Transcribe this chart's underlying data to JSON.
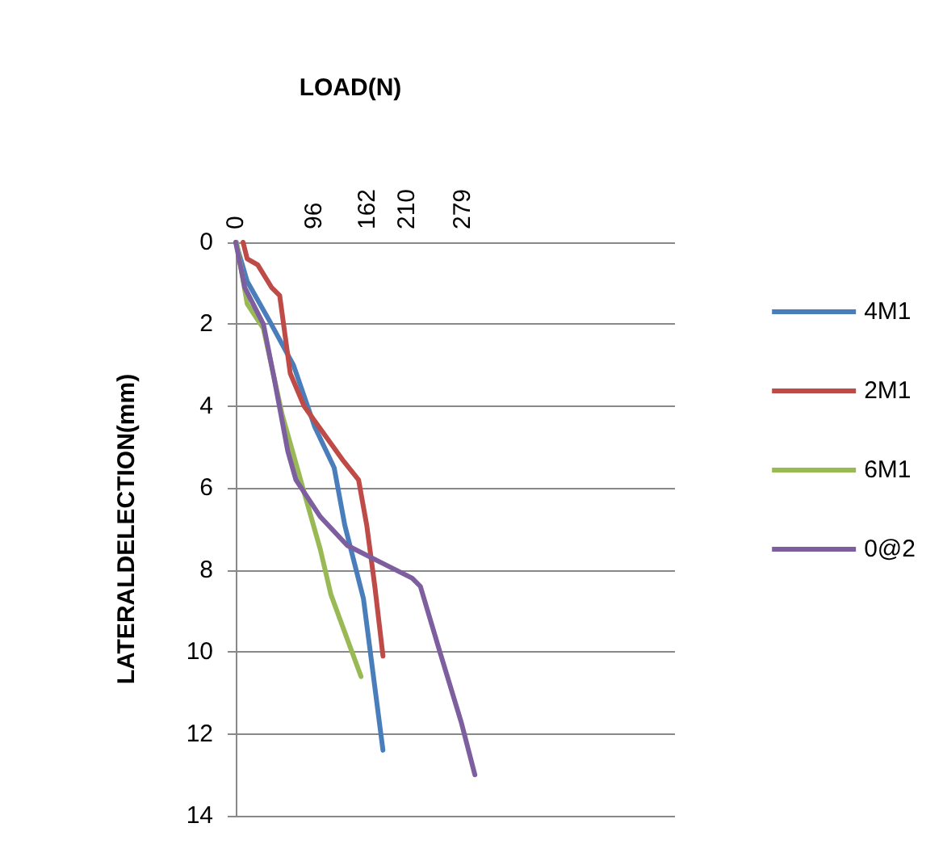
{
  "chart_data": {
    "type": "line",
    "xlabel": "LOAD(N)",
    "ylabel": "LATERALDELECTION(mm)",
    "xlim": [
      0,
      540
    ],
    "xticks": [
      0,
      96,
      162,
      210,
      279
    ],
    "ylim": [
      14,
      0
    ],
    "yticks": [
      0,
      2,
      4,
      6,
      8,
      10,
      12,
      14
    ],
    "grid": "y",
    "legend": "right",
    "marker": "none",
    "line_style": "solid",
    "series": [
      {
        "name": "4M1",
        "color": "#4a7ebb",
        "x": [
          0,
          14,
          41,
          71,
          97,
          121,
          134,
          157,
          181
        ],
        "values": [
          0,
          0.95,
          1.9,
          3.0,
          4.5,
          5.5,
          6.9,
          8.7,
          12.4
        ]
      },
      {
        "name": "2M1",
        "color": "#be4b48",
        "x": [
          9,
          14,
          27,
          44,
          54,
          67,
          84,
          131,
          151,
          161,
          171,
          181
        ],
        "values": [
          0,
          0.4,
          0.55,
          1.1,
          1.3,
          3.2,
          4.0,
          5.3,
          5.8,
          6.9,
          8.4,
          10.1
        ]
      },
      {
        "name": "6M1",
        "color": "#98b954",
        "x": [
          1,
          14,
          34,
          57,
          84,
          104,
          117,
          154
        ],
        "values": [
          0,
          1.5,
          2.1,
          4.2,
          6.1,
          7.5,
          8.6,
          10.6
        ]
      },
      {
        "name": "0@2",
        "color": "#7d5fa0",
        "x": [
          0,
          11,
          34,
          47,
          64,
          74,
          104,
          137,
          177,
          217,
          227,
          251,
          277,
          294
        ],
        "values": [
          0,
          1.1,
          2.0,
          3.3,
          5.1,
          5.8,
          6.7,
          7.4,
          7.8,
          8.2,
          8.4,
          10.0,
          11.7,
          13.0
        ]
      }
    ]
  }
}
